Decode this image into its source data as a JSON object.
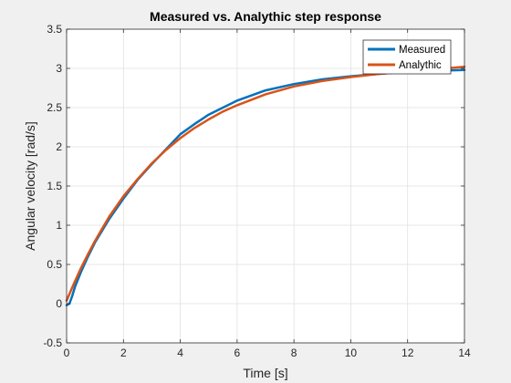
{
  "chart_data": {
    "type": "line",
    "title": "Measured vs. Analythic step response",
    "xlabel": "Time [s]",
    "ylabel": "Angular velocity [rad/s]",
    "xlim": [
      0,
      14
    ],
    "ylim": [
      -0.5,
      3.5
    ],
    "xticks": [
      0,
      2,
      4,
      6,
      8,
      10,
      12,
      14
    ],
    "yticks": [
      -0.5,
      0,
      0.5,
      1,
      1.5,
      2,
      2.5,
      3,
      3.5
    ],
    "xtick_labels": [
      "0",
      "2",
      "4",
      "6",
      "8",
      "10",
      "12",
      "14"
    ],
    "ytick_labels": [
      "-0.5",
      "0",
      "0.5",
      "1",
      "1.5",
      "2",
      "2.5",
      "3",
      "3.5"
    ],
    "grid": true,
    "legend_position": "top-right",
    "series": [
      {
        "name": "Measured",
        "color": "#0072bd",
        "x": [
          0,
          0.1,
          0.2,
          0.3,
          0.5,
          0.75,
          1.0,
          1.5,
          2.0,
          2.5,
          3.0,
          3.5,
          4.0,
          4.5,
          5.0,
          5.5,
          6.0,
          7.0,
          8.0,
          9.0,
          10.0,
          11.0,
          12.0,
          13.0,
          14.0
        ],
        "y": [
          -0.02,
          0.0,
          0.1,
          0.22,
          0.4,
          0.6,
          0.78,
          1.08,
          1.34,
          1.58,
          1.78,
          1.97,
          2.16,
          2.29,
          2.41,
          2.5,
          2.59,
          2.72,
          2.8,
          2.86,
          2.9,
          2.93,
          2.96,
          2.97,
          2.98
        ]
      },
      {
        "name": "Analythic",
        "color": "#d95319",
        "x": [
          0,
          0.25,
          0.5,
          0.75,
          1.0,
          1.5,
          2.0,
          2.5,
          3.0,
          3.5,
          4.0,
          4.5,
          5.0,
          5.5,
          6.0,
          7.0,
          8.0,
          9.0,
          10.0,
          11.0,
          12.0,
          13.0,
          14.0
        ],
        "y": [
          0.04,
          0.25,
          0.45,
          0.63,
          0.8,
          1.11,
          1.37,
          1.59,
          1.79,
          1.96,
          2.11,
          2.24,
          2.35,
          2.45,
          2.53,
          2.67,
          2.77,
          2.84,
          2.89,
          2.93,
          2.96,
          2.99,
          3.02
        ]
      }
    ]
  }
}
